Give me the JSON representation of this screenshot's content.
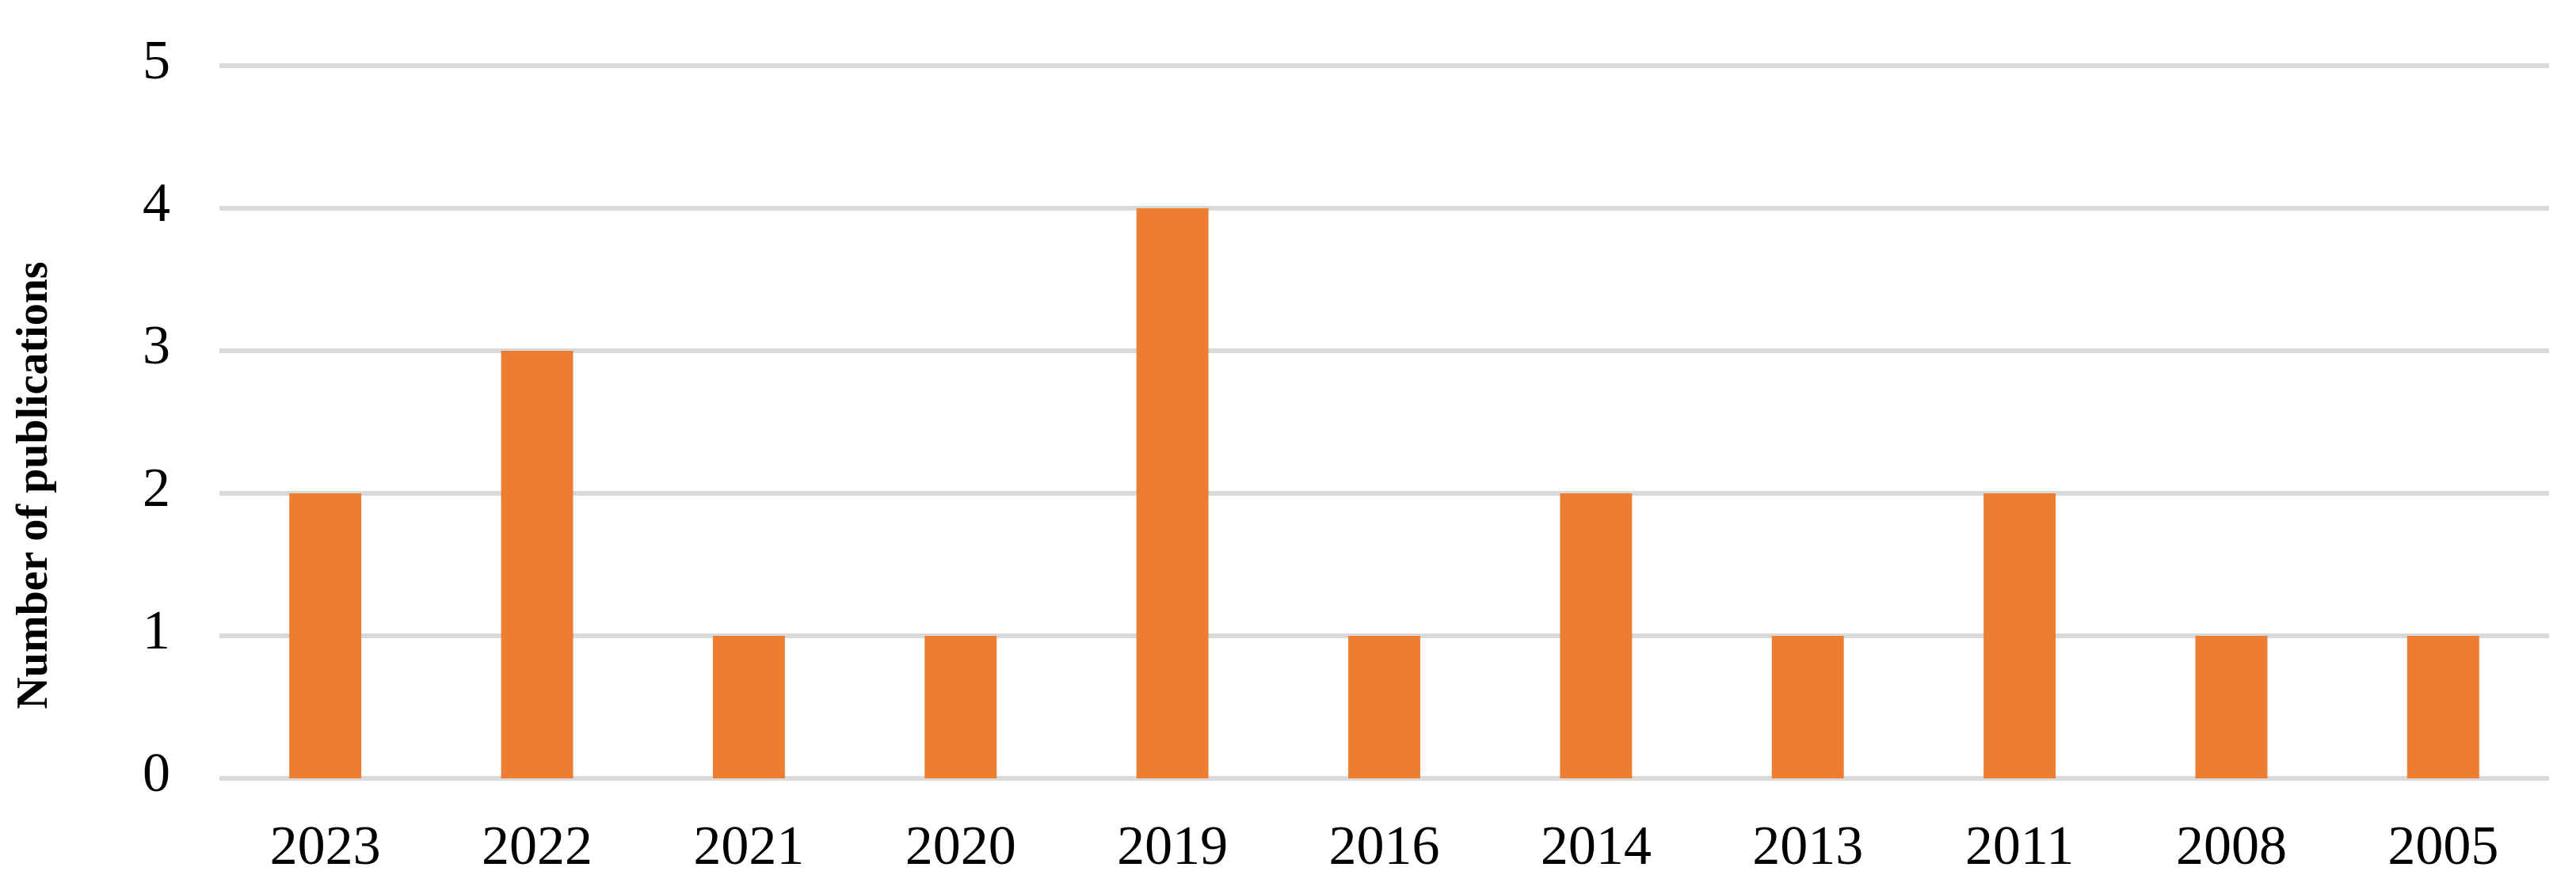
{
  "chart_data": {
    "type": "bar",
    "y_axis_label": "Number of publications",
    "categories": [
      "2023",
      "2022",
      "2021",
      "2020",
      "2019",
      "2016",
      "2014",
      "2013",
      "2011",
      "2008",
      "2005"
    ],
    "values": [
      2,
      3,
      1,
      1,
      4,
      1,
      2,
      1,
      2,
      1,
      1
    ],
    "color": "#ed7d31",
    "ylim": [
      0,
      5
    ],
    "yticks": [
      0,
      1,
      2,
      3,
      4,
      5
    ],
    "grid": true
  }
}
